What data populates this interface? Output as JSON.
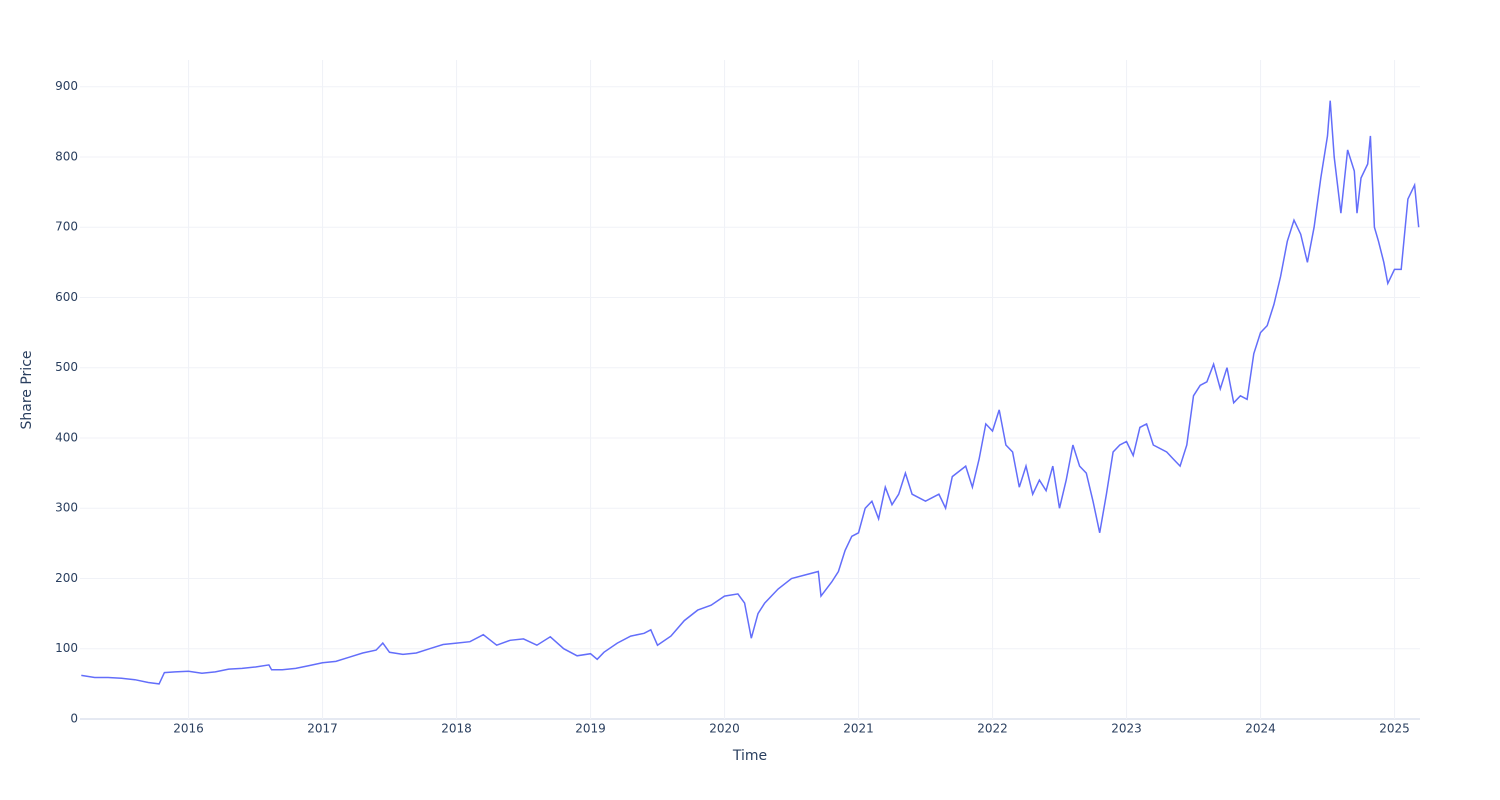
{
  "chart_data": {
    "type": "line",
    "xlabel": "Time",
    "ylabel": "Share Price",
    "xlim": [
      2015.19,
      2025.19
    ],
    "xticks": [
      2016,
      2017,
      2018,
      2019,
      2020,
      2021,
      2022,
      2023,
      2024,
      2025
    ],
    "ylim": [
      0,
      938
    ],
    "yticks": [
      0,
      100,
      200,
      300,
      400,
      500,
      600,
      700,
      800,
      900
    ],
    "grid": true,
    "series": [
      {
        "name": "Share Price",
        "color": "#636efa",
        "x": [
          2015.2,
          2015.3,
          2015.4,
          2015.5,
          2015.6,
          2015.7,
          2015.78,
          2015.82,
          2015.9,
          2016.0,
          2016.1,
          2016.2,
          2016.3,
          2016.4,
          2016.5,
          2016.6,
          2016.62,
          2016.7,
          2016.8,
          2016.9,
          2017.0,
          2017.1,
          2017.2,
          2017.3,
          2017.4,
          2017.45,
          2017.5,
          2017.6,
          2017.7,
          2017.8,
          2017.9,
          2018.0,
          2018.1,
          2018.2,
          2018.3,
          2018.4,
          2018.5,
          2018.6,
          2018.7,
          2018.8,
          2018.9,
          2019.0,
          2019.05,
          2019.1,
          2019.2,
          2019.3,
          2019.4,
          2019.45,
          2019.5,
          2019.6,
          2019.7,
          2019.8,
          2019.9,
          2020.0,
          2020.1,
          2020.15,
          2020.2,
          2020.25,
          2020.3,
          2020.4,
          2020.5,
          2020.6,
          2020.7,
          2020.72,
          2020.8,
          2020.85,
          2020.9,
          2020.95,
          2021.0,
          2021.05,
          2021.1,
          2021.15,
          2021.2,
          2021.25,
          2021.3,
          2021.35,
          2021.4,
          2021.5,
          2021.6,
          2021.65,
          2021.7,
          2021.8,
          2021.85,
          2021.9,
          2021.95,
          2022.0,
          2022.05,
          2022.1,
          2022.15,
          2022.2,
          2022.25,
          2022.3,
          2022.35,
          2022.4,
          2022.45,
          2022.5,
          2022.55,
          2022.6,
          2022.65,
          2022.7,
          2022.75,
          2022.8,
          2022.85,
          2022.9,
          2022.95,
          2023.0,
          2023.05,
          2023.1,
          2023.15,
          2023.2,
          2023.3,
          2023.35,
          2023.4,
          2023.45,
          2023.5,
          2023.55,
          2023.6,
          2023.65,
          2023.7,
          2023.75,
          2023.8,
          2023.85,
          2023.9,
          2023.95,
          2024.0,
          2024.05,
          2024.1,
          2024.15,
          2024.2,
          2024.25,
          2024.3,
          2024.35,
          2024.4,
          2024.45,
          2024.5,
          2024.52,
          2024.55,
          2024.6,
          2024.65,
          2024.7,
          2024.72,
          2024.75,
          2024.8,
          2024.82,
          2024.85,
          2024.88,
          2024.92,
          2024.95,
          2025.0,
          2025.05,
          2025.1,
          2025.15,
          2025.18
        ],
        "values": [
          62,
          59,
          59,
          58,
          56,
          52,
          50,
          66,
          67,
          68,
          65,
          67,
          71,
          72,
          74,
          77,
          70,
          70,
          72,
          76,
          80,
          82,
          88,
          94,
          98,
          108,
          95,
          92,
          94,
          100,
          106,
          108,
          110,
          120,
          105,
          112,
          114,
          105,
          117,
          100,
          90,
          93,
          85,
          95,
          108,
          118,
          122,
          127,
          105,
          118,
          140,
          155,
          162,
          175,
          178,
          165,
          115,
          150,
          165,
          185,
          200,
          205,
          210,
          175,
          195,
          210,
          240,
          260,
          265,
          300,
          310,
          285,
          330,
          305,
          320,
          350,
          320,
          310,
          320,
          300,
          345,
          360,
          330,
          370,
          420,
          410,
          440,
          390,
          380,
          330,
          360,
          320,
          340,
          325,
          360,
          300,
          340,
          390,
          360,
          350,
          310,
          265,
          320,
          380,
          390,
          395,
          375,
          415,
          420,
          390,
          380,
          370,
          360,
          390,
          460,
          475,
          480,
          505,
          470,
          500,
          450,
          460,
          455,
          520,
          550,
          560,
          590,
          630,
          680,
          710,
          690,
          650,
          700,
          770,
          830,
          880,
          800,
          720,
          810,
          780,
          720,
          770,
          790,
          830,
          700,
          680,
          650,
          620,
          640,
          640,
          740,
          760,
          700
        ]
      }
    ]
  }
}
